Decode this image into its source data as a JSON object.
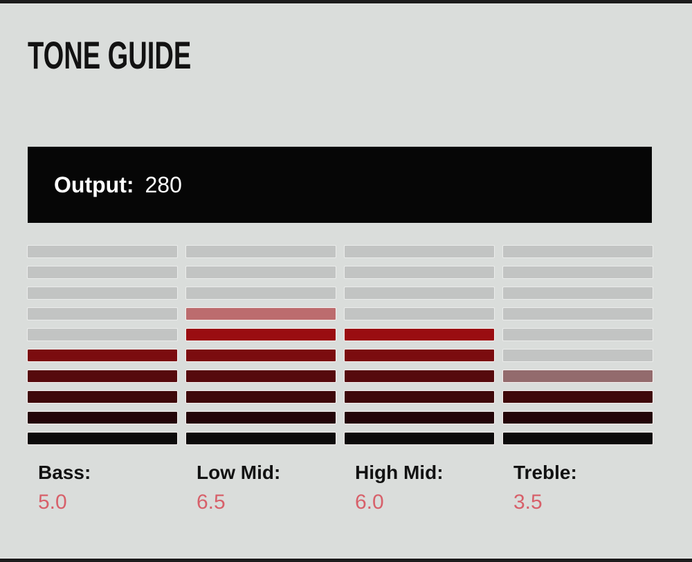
{
  "title": "TONE GUIDE",
  "output": {
    "label": "Output:",
    "value": "280"
  },
  "theme": {
    "page_bg": "#dadddb",
    "frame_color": "#1c1c1c",
    "title_color": "#121212",
    "output_bar_bg": "#060606",
    "output_text_color": "#ffffff",
    "label_color": "#121212",
    "value_color": "#d7606a",
    "unlit_segment_color": "#c2c4c3"
  },
  "chart_data": {
    "type": "bar",
    "subtype": "segmented-led-meter",
    "title": "TONE GUIDE",
    "categories": [
      "Bass",
      "Low Mid",
      "High Mid",
      "Treble"
    ],
    "values": [
      5.0,
      6.5,
      6.0,
      3.5
    ],
    "ylim": [
      0,
      10
    ],
    "segments_per_column": 10,
    "segment_value": 1,
    "half_segments": {
      "Low Mid": true,
      "Treble": true
    },
    "annotations": {
      "output": 280
    },
    "legend": "none",
    "grid": false,
    "lit_color_gradient_bottom_to_top": [
      "#0c0b0b",
      "#230508",
      "#3e080a",
      "#560a0d",
      "#7b0c0f",
      "#9a0d11"
    ],
    "half_segment_colors": {
      "Low Mid": "#bc6c6e",
      "Treble": "#936b6d"
    }
  },
  "meters": {
    "rows": 10,
    "columns": [
      {
        "id": "bass",
        "label": "Bass:",
        "value": "5.0",
        "segments": [
          "#c2c4c3",
          "#c2c4c3",
          "#c2c4c3",
          "#c2c4c3",
          "#c2c4c3",
          "#7b0c0f",
          "#560a0d",
          "#3e080a",
          "#230508",
          "#0c0b0b"
        ]
      },
      {
        "id": "low-mid",
        "label": "Low Mid:",
        "value": "6.5",
        "segments": [
          "#c2c4c3",
          "#c2c4c3",
          "#c2c4c3",
          "#bc6c6e",
          "#9a0d11",
          "#7b0c0f",
          "#560a0d",
          "#3e080a",
          "#230508",
          "#0c0b0b"
        ]
      },
      {
        "id": "high-mid",
        "label": "High Mid:",
        "value": "6.0",
        "segments": [
          "#c2c4c3",
          "#c2c4c3",
          "#c2c4c3",
          "#c2c4c3",
          "#9a0d11",
          "#7b0c0f",
          "#560a0d",
          "#3e080a",
          "#230508",
          "#0c0b0b"
        ]
      },
      {
        "id": "treble",
        "label": "Treble:",
        "value": "3.5",
        "segments": [
          "#c2c4c3",
          "#c2c4c3",
          "#c2c4c3",
          "#c2c4c3",
          "#c2c4c3",
          "#c2c4c3",
          "#936b6d",
          "#3e080a",
          "#230508",
          "#0c0b0b"
        ]
      }
    ]
  }
}
